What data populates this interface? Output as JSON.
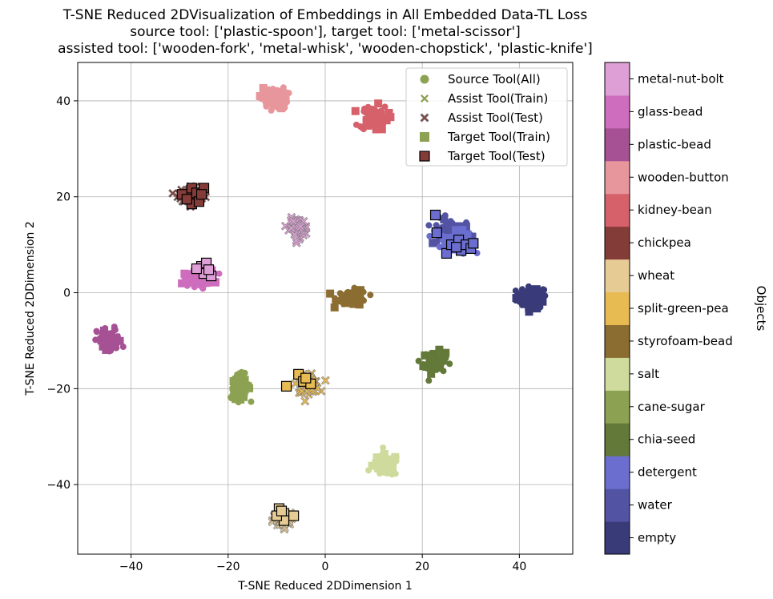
{
  "chart_data": {
    "type": "scatter",
    "title_lines": [
      "T-SNE Reduced 2DVisualization of Embeddings in All Embedded Data-TL Loss",
      "source tool: ['plastic-spoon'], target tool: ['metal-scissor']",
      "assisted tool: ['wooden-fork', 'metal-whisk', 'wooden-chopstick', 'plastic-knife']"
    ],
    "xlabel": "T-SNE Reduced 2DDimension 1",
    "ylabel": "T-SNE Reduced 2DDimension 2",
    "xlim": [
      -51,
      51
    ],
    "ylim": [
      -54.5,
      48
    ],
    "xticks": [
      -40,
      -20,
      0,
      20,
      40
    ],
    "yticks": [
      -40,
      -20,
      0,
      20,
      40
    ],
    "grid": true,
    "legend_position": "top-right",
    "legend": [
      {
        "label": "Source Tool(All)",
        "marker": "circle",
        "color": "#8ca252"
      },
      {
        "label": "Assist Tool(Train)",
        "marker": "x",
        "color": "#8ca252"
      },
      {
        "label": "Assist Tool(Test)",
        "marker": "x-outlined",
        "color": "#843c39"
      },
      {
        "label": "Target Tool(Train)",
        "marker": "square",
        "color": "#8ca252"
      },
      {
        "label": "Target Tool(Test)",
        "marker": "square-outlined",
        "color": "#843c39"
      }
    ],
    "colorbar": {
      "label": "Objects",
      "categories": [
        {
          "name": "empty",
          "color": "#393b79"
        },
        {
          "name": "water",
          "color": "#5254a3"
        },
        {
          "name": "detergent",
          "color": "#6b6ecf"
        },
        {
          "name": "chia-seed",
          "color": "#637939"
        },
        {
          "name": "cane-sugar",
          "color": "#8ca252"
        },
        {
          "name": "salt",
          "color": "#cedb9c"
        },
        {
          "name": "styrofoam-bead",
          "color": "#8c6d31"
        },
        {
          "name": "split-green-pea",
          "color": "#e7ba52"
        },
        {
          "name": "wheat",
          "color": "#e7cb94"
        },
        {
          "name": "chickpea",
          "color": "#843c39"
        },
        {
          "name": "kidney-bean",
          "color": "#d6616b"
        },
        {
          "name": "wooden-button",
          "color": "#e7969c"
        },
        {
          "name": "plastic-bead",
          "color": "#a55194"
        },
        {
          "name": "glass-bead",
          "color": "#ce6dbd"
        },
        {
          "name": "metal-nut-bolt",
          "color": "#de9ed6"
        }
      ]
    },
    "clusters": [
      {
        "object": "empty",
        "cx": 42.5,
        "cy": -1.0,
        "rx": 3.5,
        "ry": 2.5,
        "source": true
      },
      {
        "object": "water",
        "cx": 26.0,
        "cy": 12.5,
        "rx": 4.5,
        "ry": 3.2,
        "source": true
      },
      {
        "object": "detergent",
        "cx": 27.0,
        "cy": 10.5,
        "rx": 3.5,
        "ry": 2.5,
        "source": true,
        "target_test": [
          [
            22.7,
            16.2
          ],
          [
            23.0,
            12.5
          ],
          [
            25.0,
            8.2
          ],
          [
            26.0,
            10.0
          ],
          [
            27.5,
            11.0
          ],
          [
            28.0,
            8.8
          ],
          [
            29.0,
            10.0
          ],
          [
            30.0,
            9.2
          ],
          [
            30.5,
            10.3
          ],
          [
            27.0,
            9.5
          ]
        ]
      },
      {
        "object": "chia-seed",
        "cx": 22.5,
        "cy": -14.5,
        "rx": 2.5,
        "ry": 2.5,
        "source": true
      },
      {
        "object": "cane-sugar",
        "cx": -17.5,
        "cy": -19.5,
        "rx": 2.2,
        "ry": 2.8,
        "source": true
      },
      {
        "object": "salt",
        "cx": 12.5,
        "cy": -36.0,
        "rx": 3.0,
        "ry": 2.5,
        "source": true
      },
      {
        "object": "styrofoam-bead",
        "cx": 5.5,
        "cy": -1.0,
        "rx": 3.5,
        "ry": 1.8,
        "source": true
      },
      {
        "object": "split-green-pea",
        "cx": -3.5,
        "cy": -19.0,
        "rx": 2.5,
        "ry": 2.0,
        "assist_train": true,
        "target_test": [
          [
            -5.5,
            -17.0
          ],
          [
            -4.5,
            -18.5
          ],
          [
            -3.0,
            -19.0
          ],
          [
            -8.0,
            -19.5
          ],
          [
            -4.0,
            -17.8
          ]
        ]
      },
      {
        "object": "wheat",
        "cx": -9.0,
        "cy": -47.5,
        "rx": 2.0,
        "ry": 1.8,
        "assist_train": true,
        "target_test": [
          [
            -9.5,
            -45.0
          ],
          [
            -8.5,
            -46.0
          ],
          [
            -6.5,
            -46.5
          ],
          [
            -8.5,
            -47.5
          ],
          [
            -10.0,
            -46.5
          ],
          [
            -9.0,
            -45.5
          ]
        ]
      },
      {
        "object": "chickpea",
        "cx": -27.5,
        "cy": 20.5,
        "rx": 3.0,
        "ry": 2.0,
        "assist_test": true,
        "target_test": [
          [
            -29.5,
            20.5
          ],
          [
            -27.5,
            21.8
          ],
          [
            -26.5,
            20.8
          ],
          [
            -25.0,
            21.8
          ],
          [
            -27.5,
            18.5
          ],
          [
            -26.0,
            19.0
          ],
          [
            -28.5,
            19.5
          ],
          [
            -25.5,
            20.5
          ]
        ]
      },
      {
        "object": "kidney-bean",
        "cx": 10.0,
        "cy": 36.5,
        "rx": 3.2,
        "ry": 2.8,
        "source": true
      },
      {
        "object": "wooden-button",
        "cx": -10.5,
        "cy": 40.5,
        "rx": 3.0,
        "ry": 2.5,
        "source": true
      },
      {
        "object": "plastic-bead",
        "cx": -44.5,
        "cy": -10.0,
        "rx": 2.8,
        "ry": 3.0,
        "source": true
      },
      {
        "object": "glass-bead",
        "cx": -26.0,
        "cy": 3.0,
        "rx": 3.5,
        "ry": 1.8,
        "source": true
      },
      {
        "object": "metal-nut-bolt",
        "cx": -5.5,
        "cy": 13.5,
        "rx": 2.0,
        "ry": 2.2,
        "assist_test": true,
        "target_test": [
          [
            -25.5,
            5.5
          ],
          [
            -24.5,
            6.2
          ],
          [
            -25.0,
            4.0
          ],
          [
            -23.5,
            3.5
          ],
          [
            -26.5,
            5.0
          ],
          [
            -24.0,
            4.8
          ]
        ]
      }
    ]
  }
}
